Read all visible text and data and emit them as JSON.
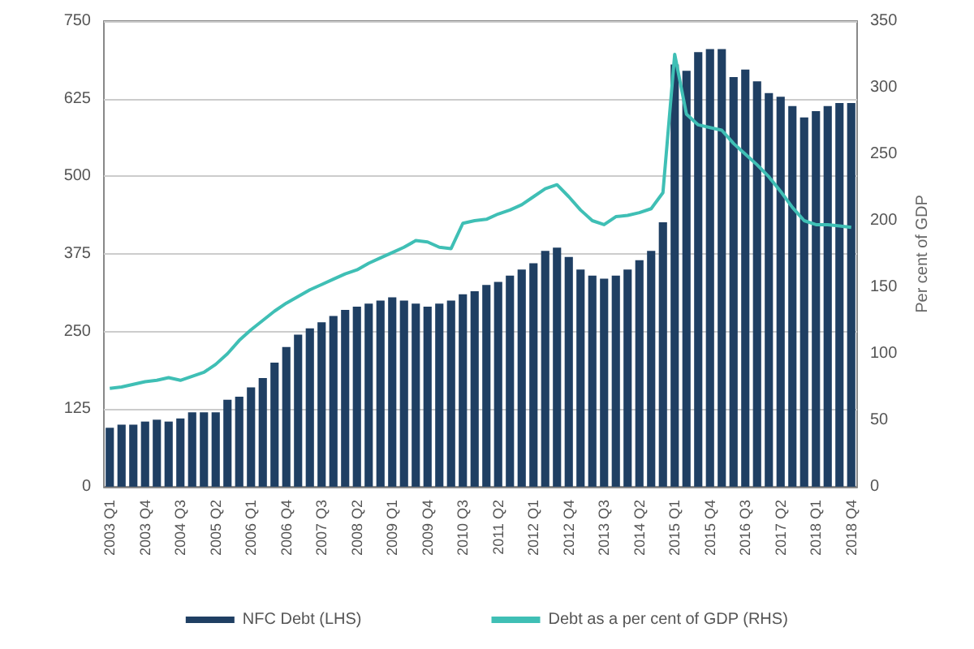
{
  "chart_data": {
    "type": "bar",
    "categories": [
      "2003 Q1",
      null,
      null,
      "2003 Q4",
      null,
      null,
      "2004 Q3",
      null,
      null,
      "2005 Q2",
      null,
      null,
      "2006 Q1",
      null,
      null,
      "2006 Q4",
      null,
      null,
      "2007 Q3",
      null,
      null,
      "2008 Q2",
      null,
      null,
      "2009 Q1",
      null,
      null,
      "2009 Q4",
      null,
      null,
      "2010 Q3",
      null,
      null,
      "2011 Q2",
      null,
      null,
      "2012 Q1",
      null,
      null,
      "2012 Q4",
      null,
      null,
      "2013 Q3",
      null,
      null,
      "2014 Q2",
      null,
      null,
      "2015 Q1",
      null,
      null,
      "2015 Q4",
      null,
      null,
      "2016 Q3",
      null,
      null,
      "2017 Q2",
      null,
      null,
      "2018 Q1",
      null,
      null,
      "2018 Q4"
    ],
    "series": [
      {
        "name": "NFC Debt (LHS)",
        "color": "#1f3f63",
        "values": [
          95,
          100,
          100,
          105,
          108,
          105,
          110,
          120,
          120,
          120,
          140,
          145,
          160,
          175,
          200,
          225,
          245,
          255,
          265,
          275,
          285,
          290,
          295,
          300,
          305,
          300,
          295,
          290,
          295,
          300,
          310,
          315,
          325,
          330,
          340,
          350,
          360,
          380,
          385,
          370,
          350,
          340,
          335,
          340,
          350,
          365,
          380,
          426,
          680,
          670,
          700,
          705,
          705,
          660,
          672,
          653,
          634,
          628,
          613,
          595,
          605,
          613,
          618,
          618
        ]
      },
      {
        "name": "Debt as a per cent of GDP (RHS)",
        "type": "line",
        "axis": "y2",
        "color": "#3fbfb5",
        "values": [
          74,
          75,
          77,
          79,
          80,
          82,
          80,
          83,
          86,
          92,
          100,
          110,
          118,
          125,
          132,
          138,
          143,
          148,
          152,
          156,
          160,
          163,
          168,
          172,
          176,
          180,
          185,
          184,
          180,
          179,
          198,
          200,
          201,
          205,
          208,
          212,
          218,
          224,
          227,
          218,
          208,
          200,
          197,
          203,
          204,
          206,
          209,
          221,
          325,
          280,
          272,
          270,
          268,
          258,
          250,
          242,
          233,
          222,
          210,
          200,
          197,
          197,
          196,
          195
        ]
      }
    ],
    "y2label": "Per cent of GDP",
    "ylim": [
      0,
      750
    ],
    "yticks": [
      0,
      125,
      250,
      375,
      500,
      625,
      750
    ],
    "y2lim": [
      0,
      350
    ],
    "y2ticks": [
      0,
      50,
      100,
      150,
      200,
      250,
      300,
      350
    ],
    "grid": "y",
    "legend": "bottom",
    "marker": "none"
  }
}
